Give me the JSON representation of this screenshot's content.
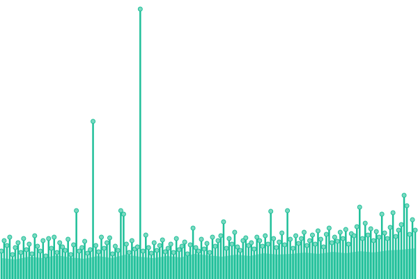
{
  "chart_data": {
    "type": "lollipop",
    "ylim": [
      0,
      400
    ],
    "area": {
      "color": "#88e0ca",
      "values": [
        30,
        28,
        32,
        30,
        34,
        31,
        29,
        33,
        30,
        35,
        32,
        30,
        33,
        31,
        36,
        34,
        32,
        35,
        33,
        37,
        35,
        36,
        38,
        36,
        39,
        37,
        40,
        38,
        41,
        42,
        44
      ]
    },
    "series": [
      {
        "color": "#1fbf99",
        "marker_color": "#7ad9c0",
        "values": [
          40,
          55,
          48,
          60,
          35,
          45,
          52,
          38,
          58,
          42,
          50,
          36,
          62,
          47,
          40,
          55,
          33,
          58,
          44,
          60,
          38,
          52,
          46,
          41,
          57,
          35,
          49,
          98,
          40,
          45,
          54,
          37,
          42,
          226,
          48,
          39,
          60,
          44,
          52,
          59,
          36,
          47,
          41,
          98,
          93,
          50,
          38,
          55,
          43,
          46,
          387,
          40,
          63,
          45,
          37,
          52,
          41,
          48,
          56,
          39,
          44,
          50,
          38,
          58,
          42,
          47,
          53,
          36,
          49,
          73,
          45,
          40,
          57,
          43,
          51,
          38,
          60,
          47,
          55,
          62,
          82,
          44,
          58,
          50,
          67,
          46,
          41,
          55,
          59,
          48,
          52,
          43,
          60,
          55,
          47,
          62,
          50,
          97,
          58,
          45,
          53,
          66,
          49,
          98,
          57,
          44,
          62,
          51,
          58,
          67,
          48,
          55,
          63,
          50,
          69,
          57,
          46,
          64,
          73,
          52,
          60,
          54,
          67,
          58,
          71,
          50,
          65,
          62,
          75,
          103,
          58,
          80,
          63,
          72,
          55,
          68,
          60,
          93,
          66,
          58,
          74,
          95,
          61,
          70,
          78,
          120,
          105,
          64,
          85,
          70
        ]
      }
    ]
  }
}
